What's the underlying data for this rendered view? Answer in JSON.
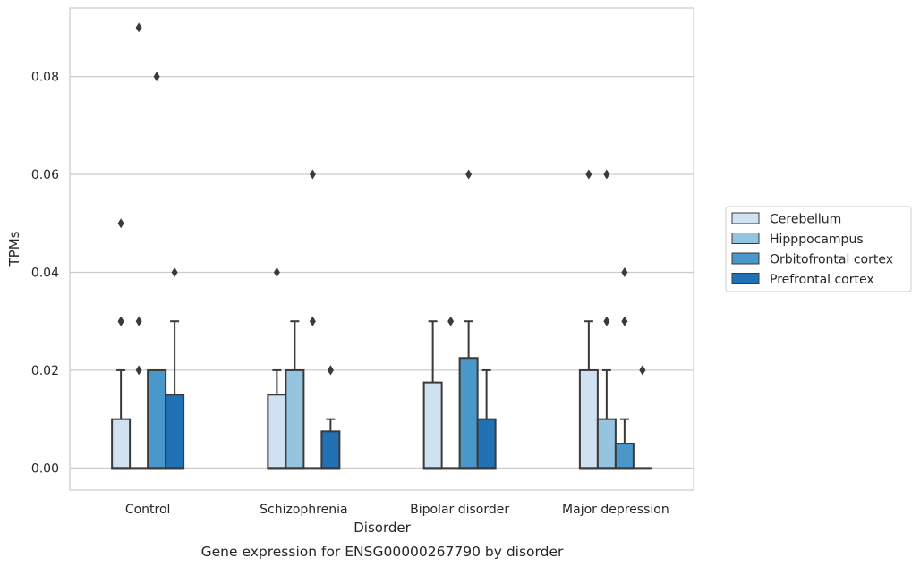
{
  "chart_data": {
    "type": "box",
    "xlabel": "Disorder",
    "ylabel": "TPMs",
    "caption": "Gene expression for ENSG00000267790 by disorder",
    "categories": [
      "Control",
      "Schizophrenia",
      "Bipolar disorder",
      "Major depression"
    ],
    "ylim": [
      -0.0045,
      0.094
    ],
    "yticks": [
      0.0,
      0.02,
      0.04,
      0.06,
      0.08
    ],
    "ytick_labels": [
      "0.00",
      "0.02",
      "0.04",
      "0.06",
      "0.08"
    ],
    "grid": "horizontal",
    "legend_position": "center-right",
    "series": [
      {
        "name": "Cerebellum",
        "color": "#d0e1f2",
        "boxes": [
          {
            "q1": 0.0,
            "median": 0.0,
            "q3": 0.01,
            "whisker_low": 0.0,
            "whisker_high": 0.02,
            "outliers": [
              0.03,
              0.03,
              0.05
            ]
          },
          {
            "q1": 0.0,
            "median": 0.0,
            "q3": 0.015,
            "whisker_low": 0.0,
            "whisker_high": 0.02,
            "outliers": [
              0.04
            ]
          },
          {
            "q1": 0.0,
            "median": 0.0,
            "q3": 0.0175,
            "whisker_low": 0.0,
            "whisker_high": 0.03,
            "outliers": []
          },
          {
            "q1": 0.0,
            "median": 0.0,
            "q3": 0.02,
            "whisker_low": 0.0,
            "whisker_high": 0.03,
            "outliers": [
              0.06
            ]
          }
        ]
      },
      {
        "name": "Hipppocampus",
        "color": "#94c4df",
        "boxes": [
          {
            "q1": 0.0,
            "median": 0.0,
            "q3": 0.0,
            "whisker_low": 0.0,
            "whisker_high": 0.0,
            "outliers": [
              0.02,
              0.03,
              0.09
            ]
          },
          {
            "q1": 0.0,
            "median": 0.0,
            "q3": 0.02,
            "whisker_low": 0.0,
            "whisker_high": 0.03,
            "outliers": []
          },
          {
            "q1": 0.0,
            "median": 0.0,
            "q3": 0.0,
            "whisker_low": 0.0,
            "whisker_high": 0.0,
            "outliers": [
              0.03
            ]
          },
          {
            "q1": 0.0,
            "median": 0.0,
            "q3": 0.01,
            "whisker_low": 0.0,
            "whisker_high": 0.02,
            "outliers": [
              0.03,
              0.06
            ]
          }
        ]
      },
      {
        "name": "Orbitofrontal cortex",
        "color": "#4a98c9",
        "boxes": [
          {
            "q1": 0.0,
            "median": 0.0,
            "q3": 0.02,
            "whisker_low": 0.0,
            "whisker_high": 0.02,
            "outliers": [
              0.08
            ]
          },
          {
            "q1": 0.0,
            "median": 0.0,
            "q3": 0.0,
            "whisker_low": 0.0,
            "whisker_high": 0.0,
            "outliers": [
              0.03,
              0.06
            ]
          },
          {
            "q1": 0.0,
            "median": 0.0,
            "q3": 0.0225,
            "whisker_low": 0.0,
            "whisker_high": 0.03,
            "outliers": [
              0.06
            ]
          },
          {
            "q1": 0.0,
            "median": 0.0,
            "q3": 0.005,
            "whisker_low": 0.0,
            "whisker_high": 0.01,
            "outliers": [
              0.03,
              0.04
            ]
          }
        ]
      },
      {
        "name": "Prefrontal cortex",
        "color": "#2171b5",
        "boxes": [
          {
            "q1": 0.0,
            "median": 0.0,
            "q3": 0.015,
            "whisker_low": 0.0,
            "whisker_high": 0.03,
            "outliers": [
              0.04
            ]
          },
          {
            "q1": 0.0,
            "median": 0.0,
            "q3": 0.0075,
            "whisker_low": 0.0,
            "whisker_high": 0.01,
            "outliers": [
              0.02,
              0.02
            ]
          },
          {
            "q1": 0.0,
            "median": 0.0,
            "q3": 0.01,
            "whisker_low": 0.0,
            "whisker_high": 0.02,
            "outliers": []
          },
          {
            "q1": 0.0,
            "median": 0.0,
            "q3": 0.0,
            "whisker_low": 0.0,
            "whisker_high": 0.0,
            "outliers": [
              0.02,
              0.02
            ]
          }
        ]
      }
    ]
  }
}
